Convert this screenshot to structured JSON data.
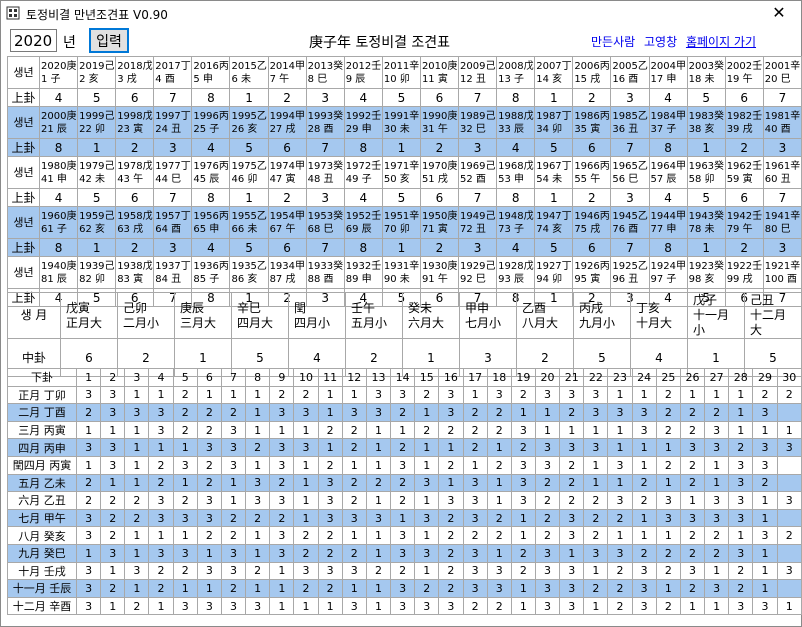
{
  "window": {
    "title": "토정비결 만년조견표 V0.90",
    "close_glyph": "✕"
  },
  "toolbar": {
    "year_value": "2020",
    "year_suffix": "년",
    "input_button": "입력",
    "heading": "庚子年 토정비결 조견표",
    "links": [
      "만든사람",
      "고영창",
      "홈페이지 가기"
    ]
  },
  "labels": {
    "birth_year": "생년",
    "upper_gwae": "上卦",
    "birth_month": "생 月",
    "middle_gwae": "中卦",
    "lower_gwae": "下卦"
  },
  "year_blocks": [
    {
      "years": [
        [
          "2020庚",
          "1 子"
        ],
        [
          "2019己",
          "2 亥"
        ],
        [
          "2018戊",
          "3 戌"
        ],
        [
          "2017丁",
          "4 酉"
        ],
        [
          "2016丙",
          "5 申"
        ],
        [
          "2015乙",
          "6 未"
        ],
        [
          "2014甲",
          "7 午"
        ],
        [
          "2013癸",
          "8 巳"
        ],
        [
          "2012壬",
          "9 辰"
        ],
        [
          "2011辛",
          "10 卯"
        ],
        [
          "2010庚",
          "11 寅"
        ],
        [
          "2009己",
          "12 丑"
        ],
        [
          "2008戊",
          "13 子"
        ],
        [
          "2007丁",
          "14 亥"
        ],
        [
          "2006丙",
          "15 戌"
        ],
        [
          "2005乙",
          "16 酉"
        ],
        [
          "2004甲",
          "17 申"
        ],
        [
          "2003癸",
          "18 未"
        ],
        [
          "2002壬",
          "19 午"
        ],
        [
          "2001辛",
          "20 巳"
        ]
      ],
      "gwae": [
        "4",
        "5",
        "6",
        "7",
        "8",
        "1",
        "2",
        "3",
        "4",
        "5",
        "6",
        "7",
        "8",
        "1",
        "2",
        "3",
        "4",
        "5",
        "6",
        "7"
      ],
      "blue": false
    },
    {
      "years": [
        [
          "2000庚",
          "21 辰"
        ],
        [
          "1999己",
          "22 卯"
        ],
        [
          "1998戊",
          "23 寅"
        ],
        [
          "1997丁",
          "24 丑"
        ],
        [
          "1996丙",
          "25 子"
        ],
        [
          "1995乙",
          "26 亥"
        ],
        [
          "1994甲",
          "27 戌"
        ],
        [
          "1993癸",
          "28 酉"
        ],
        [
          "1992壬",
          "29 申"
        ],
        [
          "1991辛",
          "30 未"
        ],
        [
          "1990庚",
          "31 午"
        ],
        [
          "1989己",
          "32 巳"
        ],
        [
          "1988戊",
          "33 辰"
        ],
        [
          "1987丁",
          "34 卯"
        ],
        [
          "1986丙",
          "35 寅"
        ],
        [
          "1985乙",
          "36 丑"
        ],
        [
          "1984甲",
          "37 子"
        ],
        [
          "1983癸",
          "38 亥"
        ],
        [
          "1982壬",
          "39 戌"
        ],
        [
          "1981辛",
          "40 酉"
        ]
      ],
      "gwae": [
        "8",
        "1",
        "2",
        "3",
        "4",
        "5",
        "6",
        "7",
        "8",
        "1",
        "2",
        "3",
        "4",
        "5",
        "6",
        "7",
        "8",
        "1",
        "2",
        "3"
      ],
      "blue": true
    },
    {
      "years": [
        [
          "1980庚",
          "41 申"
        ],
        [
          "1979己",
          "42 未"
        ],
        [
          "1978戊",
          "43 午"
        ],
        [
          "1977丁",
          "44 巳"
        ],
        [
          "1976丙",
          "45 辰"
        ],
        [
          "1975乙",
          "46 卯"
        ],
        [
          "1974甲",
          "47 寅"
        ],
        [
          "1973癸",
          "48 丑"
        ],
        [
          "1972壬",
          "49 子"
        ],
        [
          "1971辛",
          "50 亥"
        ],
        [
          "1970庚",
          "51 戌"
        ],
        [
          "1969己",
          "52 酉"
        ],
        [
          "1968戊",
          "53 申"
        ],
        [
          "1967丁",
          "54 未"
        ],
        [
          "1966丙",
          "55 午"
        ],
        [
          "1965乙",
          "56 巳"
        ],
        [
          "1964甲",
          "57 辰"
        ],
        [
          "1963癸",
          "58 卯"
        ],
        [
          "1962壬",
          "59 寅"
        ],
        [
          "1961辛",
          "60 丑"
        ]
      ],
      "gwae": [
        "4",
        "5",
        "6",
        "7",
        "8",
        "1",
        "2",
        "3",
        "4",
        "5",
        "6",
        "7",
        "8",
        "1",
        "2",
        "3",
        "4",
        "5",
        "6",
        "7"
      ],
      "blue": false
    },
    {
      "years": [
        [
          "1960庚",
          "61 子"
        ],
        [
          "1959己",
          "62 亥"
        ],
        [
          "1958戊",
          "63 戌"
        ],
        [
          "1957丁",
          "64 酉"
        ],
        [
          "1956丙",
          "65 申"
        ],
        [
          "1955乙",
          "66 未"
        ],
        [
          "1954甲",
          "67 午"
        ],
        [
          "1953癸",
          "68 巳"
        ],
        [
          "1952壬",
          "69 辰"
        ],
        [
          "1951辛",
          "70 卯"
        ],
        [
          "1950庚",
          "71 寅"
        ],
        [
          "1949己",
          "72 丑"
        ],
        [
          "1948戊",
          "73 子"
        ],
        [
          "1947丁",
          "74 亥"
        ],
        [
          "1946丙",
          "75 戌"
        ],
        [
          "1945乙",
          "76 酉"
        ],
        [
          "1944甲",
          "77 申"
        ],
        [
          "1943癸",
          "78 未"
        ],
        [
          "1942壬",
          "79 午"
        ],
        [
          "1941辛",
          "80 巳"
        ]
      ],
      "gwae": [
        "8",
        "1",
        "2",
        "3",
        "4",
        "5",
        "6",
        "7",
        "8",
        "1",
        "2",
        "3",
        "4",
        "5",
        "6",
        "7",
        "8",
        "1",
        "2",
        "3"
      ],
      "blue": true
    },
    {
      "years": [
        [
          "1940庚",
          "81 辰"
        ],
        [
          "1939己",
          "82 卯"
        ],
        [
          "1938戊",
          "83 寅"
        ],
        [
          "1937丁",
          "84 丑"
        ],
        [
          "1936丙",
          "85 子"
        ],
        [
          "1935乙",
          "86 亥"
        ],
        [
          "1934甲",
          "87 戌"
        ],
        [
          "1933癸",
          "88 酉"
        ],
        [
          "1932壬",
          "89 申"
        ],
        [
          "1931辛",
          "90 未"
        ],
        [
          "1930庚",
          "91 午"
        ],
        [
          "1929己",
          "92 巳"
        ],
        [
          "1928戊",
          "93 辰"
        ],
        [
          "1927丁",
          "94 卯"
        ],
        [
          "1926丙",
          "95 寅"
        ],
        [
          "1925乙",
          "96 丑"
        ],
        [
          "1924甲",
          "97 子"
        ],
        [
          "1923癸",
          "98 亥"
        ],
        [
          "1922壬",
          "99 戌"
        ],
        [
          "1921辛",
          "100 酉"
        ]
      ],
      "gwae": [
        "4",
        "5",
        "6",
        "7",
        "8",
        "1",
        "2",
        "3",
        "4",
        "5",
        "6",
        "7",
        "8",
        "1",
        "2",
        "3",
        "4",
        "5",
        "6",
        "7"
      ],
      "blue": false
    }
  ],
  "months": [
    [
      "戊寅",
      "正月大"
    ],
    [
      "己卯",
      "二月小"
    ],
    [
      "庚辰",
      "三月大"
    ],
    [
      "辛巳",
      "四月大"
    ],
    [
      "閏",
      "四月小"
    ],
    [
      "壬午",
      "五月小"
    ],
    [
      "癸未",
      "六月大"
    ],
    [
      "甲申",
      "七月小"
    ],
    [
      "乙酉",
      "八月大"
    ],
    [
      "丙戌",
      "九月小"
    ],
    [
      "丁亥",
      "十月大"
    ],
    [
      "戊子",
      "十一月小"
    ],
    [
      "己丑",
      "十二月大"
    ]
  ],
  "middle_values": [
    "6",
    "2",
    "1",
    "5",
    "4",
    "2",
    "1",
    "3",
    "2",
    "5",
    "4",
    "1",
    "5"
  ],
  "day_numbers": [
    "1",
    "2",
    "3",
    "4",
    "5",
    "6",
    "7",
    "8",
    "9",
    "10",
    "11",
    "12",
    "13",
    "14",
    "15",
    "16",
    "17",
    "18",
    "19",
    "20",
    "21",
    "22",
    "23",
    "24",
    "25",
    "26",
    "27",
    "28",
    "29",
    "30"
  ],
  "lower_rows": [
    {
      "label": "正月 丁卯",
      "blue": false,
      "values": [
        "3",
        "3",
        "1",
        "1",
        "2",
        "1",
        "1",
        "1",
        "2",
        "2",
        "1",
        "1",
        "3",
        "3",
        "2",
        "3",
        "1",
        "3",
        "2",
        "3",
        "3",
        "3",
        "1",
        "1",
        "2",
        "1",
        "1",
        "1",
        "2",
        "2"
      ]
    },
    {
      "label": "二月 丁酉",
      "blue": true,
      "values": [
        "2",
        "3",
        "3",
        "3",
        "2",
        "2",
        "2",
        "1",
        "3",
        "3",
        "1",
        "3",
        "3",
        "2",
        "1",
        "3",
        "2",
        "2",
        "1",
        "1",
        "2",
        "3",
        "3",
        "3",
        "2",
        "2",
        "2",
        "1",
        "3",
        ""
      ]
    },
    {
      "label": "三月 丙寅",
      "blue": false,
      "values": [
        "1",
        "1",
        "1",
        "3",
        "2",
        "2",
        "3",
        "1",
        "1",
        "1",
        "2",
        "2",
        "1",
        "1",
        "2",
        "2",
        "2",
        "2",
        "3",
        "1",
        "1",
        "1",
        "1",
        "3",
        "2",
        "2",
        "3",
        "1",
        "1",
        "1"
      ]
    },
    {
      "label": "四月 丙申",
      "blue": true,
      "values": [
        "3",
        "3",
        "1",
        "1",
        "1",
        "3",
        "3",
        "2",
        "3",
        "3",
        "1",
        "2",
        "1",
        "2",
        "1",
        "1",
        "2",
        "1",
        "2",
        "3",
        "3",
        "3",
        "1",
        "1",
        "1",
        "3",
        "3",
        "2",
        "3",
        "3"
      ]
    },
    {
      "label": "閏四月 丙寅",
      "blue": false,
      "values": [
        "1",
        "3",
        "1",
        "2",
        "3",
        "2",
        "3",
        "1",
        "3",
        "1",
        "2",
        "1",
        "1",
        "3",
        "1",
        "2",
        "1",
        "2",
        "3",
        "3",
        "2",
        "1",
        "3",
        "1",
        "2",
        "2",
        "1",
        "3",
        "3",
        ""
      ]
    },
    {
      "label": "五月 乙未",
      "blue": true,
      "values": [
        "2",
        "1",
        "1",
        "2",
        "1",
        "2",
        "1",
        "3",
        "2",
        "1",
        "3",
        "2",
        "2",
        "2",
        "3",
        "1",
        "3",
        "1",
        "3",
        "2",
        "2",
        "1",
        "1",
        "2",
        "1",
        "2",
        "1",
        "3",
        "2",
        ""
      ]
    },
    {
      "label": "六月 乙丑",
      "blue": false,
      "values": [
        "2",
        "2",
        "2",
        "3",
        "2",
        "3",
        "1",
        "3",
        "3",
        "1",
        "3",
        "2",
        "1",
        "2",
        "1",
        "3",
        "3",
        "1",
        "3",
        "2",
        "2",
        "2",
        "3",
        "2",
        "3",
        "1",
        "3",
        "3",
        "1",
        "3"
      ]
    },
    {
      "label": "七月 甲午",
      "blue": true,
      "values": [
        "3",
        "2",
        "2",
        "3",
        "3",
        "3",
        "2",
        "2",
        "2",
        "1",
        "3",
        "3",
        "3",
        "1",
        "3",
        "2",
        "3",
        "2",
        "1",
        "2",
        "3",
        "2",
        "2",
        "1",
        "3",
        "3",
        "3",
        "3",
        "1",
        ""
      ]
    },
    {
      "label": "八月 癸亥",
      "blue": false,
      "values": [
        "3",
        "2",
        "1",
        "1",
        "1",
        "2",
        "2",
        "1",
        "3",
        "2",
        "2",
        "1",
        "1",
        "3",
        "1",
        "2",
        "2",
        "2",
        "1",
        "2",
        "3",
        "2",
        "1",
        "1",
        "1",
        "2",
        "2",
        "1",
        "3",
        "2"
      ]
    },
    {
      "label": "九月 癸巳",
      "blue": true,
      "values": [
        "1",
        "3",
        "1",
        "3",
        "3",
        "1",
        "3",
        "1",
        "3",
        "2",
        "2",
        "2",
        "1",
        "3",
        "3",
        "2",
        "3",
        "1",
        "2",
        "3",
        "1",
        "3",
        "3",
        "2",
        "2",
        "2",
        "2",
        "3",
        "1",
        ""
      ]
    },
    {
      "label": "十月 壬戌",
      "blue": false,
      "values": [
        "3",
        "1",
        "3",
        "2",
        "2",
        "3",
        "3",
        "2",
        "1",
        "3",
        "3",
        "3",
        "2",
        "2",
        "1",
        "2",
        "3",
        "3",
        "2",
        "3",
        "3",
        "1",
        "2",
        "3",
        "2",
        "3",
        "1",
        "2",
        "1",
        "3"
      ]
    },
    {
      "label": "十一月 壬辰",
      "blue": true,
      "values": [
        "3",
        "2",
        "1",
        "2",
        "1",
        "1",
        "2",
        "1",
        "1",
        "2",
        "2",
        "1",
        "1",
        "3",
        "2",
        "2",
        "3",
        "3",
        "1",
        "3",
        "3",
        "2",
        "2",
        "3",
        "1",
        "2",
        "3",
        "2",
        "1",
        ""
      ]
    },
    {
      "label": "十二月 辛酉",
      "blue": false,
      "values": [
        "3",
        "1",
        "2",
        "1",
        "3",
        "3",
        "3",
        "3",
        "1",
        "1",
        "1",
        "3",
        "1",
        "3",
        "3",
        "3",
        "2",
        "2",
        "1",
        "3",
        "3",
        "1",
        "2",
        "3",
        "2",
        "1",
        "1",
        "3",
        "3",
        "1"
      ]
    }
  ]
}
